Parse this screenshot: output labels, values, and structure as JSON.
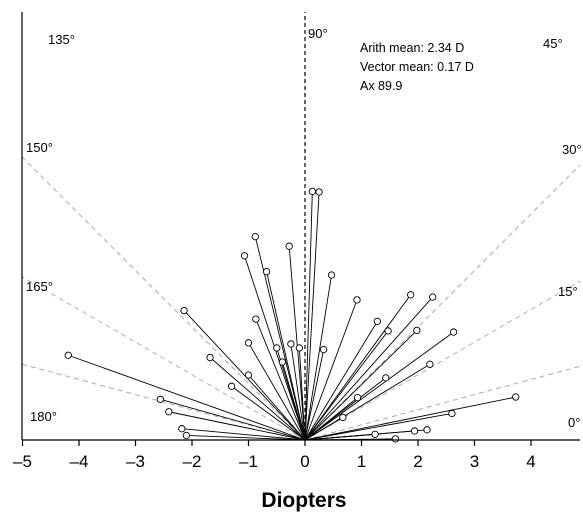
{
  "chart_data": {
    "type": "scatter",
    "title": "",
    "xlabel": "Diopters",
    "ylabel": "",
    "xlim": [
      -5,
      5
    ],
    "ylim": [
      0,
      4.7
    ],
    "x_ticks": [
      "–5",
      "–4",
      "–3",
      "–2",
      "–1",
      "0",
      "1",
      "2",
      "3",
      "4"
    ],
    "x_tick_values": [
      -5,
      -4,
      -3,
      -2,
      -1,
      0,
      1,
      2,
      3,
      4
    ],
    "angle_guides": [
      {
        "angle": 0,
        "label": "0°"
      },
      {
        "angle": 15,
        "label": "15°"
      },
      {
        "angle": 30,
        "label": "30°"
      },
      {
        "angle": 45,
        "label": "45°"
      },
      {
        "angle": 90,
        "label": "90°"
      },
      {
        "angle": 135,
        "label": "135°"
      },
      {
        "angle": 150,
        "label": "150°"
      },
      {
        "angle": 165,
        "label": "165°"
      },
      {
        "angle": 180,
        "label": "180°"
      }
    ],
    "stats": {
      "arith_mean": "Arith mean: 2.34 D",
      "vector_mean": "Vector mean: 0.17 D",
      "axis": "Ax 89.9"
    },
    "points": [
      {
        "x": 0.13,
        "y": 4.4
      },
      {
        "x": 0.25,
        "y": 4.39
      },
      {
        "x": -0.88,
        "y": 3.6
      },
      {
        "x": -0.28,
        "y": 3.43
      },
      {
        "x": -1.07,
        "y": 3.26
      },
      {
        "x": -0.68,
        "y": 2.98
      },
      {
        "x": 0.47,
        "y": 2.92
      },
      {
        "x": 0.92,
        "y": 2.48
      },
      {
        "x": 1.87,
        "y": 2.57
      },
      {
        "x": 2.26,
        "y": 2.53
      },
      {
        "x": -2.14,
        "y": 2.29
      },
      {
        "x": -0.87,
        "y": 2.14
      },
      {
        "x": -1.0,
        "y": 1.72
      },
      {
        "x": -0.5,
        "y": 1.63
      },
      {
        "x": -0.25,
        "y": 1.7
      },
      {
        "x": -0.1,
        "y": 1.63
      },
      {
        "x": 0.33,
        "y": 1.6
      },
      {
        "x": -0.4,
        "y": 1.38
      },
      {
        "x": 1.28,
        "y": 2.1
      },
      {
        "x": 1.47,
        "y": 1.93
      },
      {
        "x": 1.98,
        "y": 1.94
      },
      {
        "x": 2.63,
        "y": 1.91
      },
      {
        "x": 2.21,
        "y": 1.34
      },
      {
        "x": -1.68,
        "y": 1.46
      },
      {
        "x": -4.19,
        "y": 1.5
      },
      {
        "x": -1.0,
        "y": 1.15
      },
      {
        "x": -1.3,
        "y": 0.95
      },
      {
        "x": 1.43,
        "y": 1.1
      },
      {
        "x": 0.93,
        "y": 0.75
      },
      {
        "x": 0.67,
        "y": 0.4
      },
      {
        "x": -2.56,
        "y": 0.72
      },
      {
        "x": -2.41,
        "y": 0.5
      },
      {
        "x": 3.73,
        "y": 0.76
      },
      {
        "x": 2.6,
        "y": 0.47
      },
      {
        "x": -2.18,
        "y": 0.2
      },
      {
        "x": -2.1,
        "y": 0.08
      },
      {
        "x": 2.16,
        "y": 0.18
      },
      {
        "x": 1.94,
        "y": 0.16
      },
      {
        "x": 1.24,
        "y": 0.1
      },
      {
        "x": 1.6,
        "y": 0.02
      }
    ]
  }
}
